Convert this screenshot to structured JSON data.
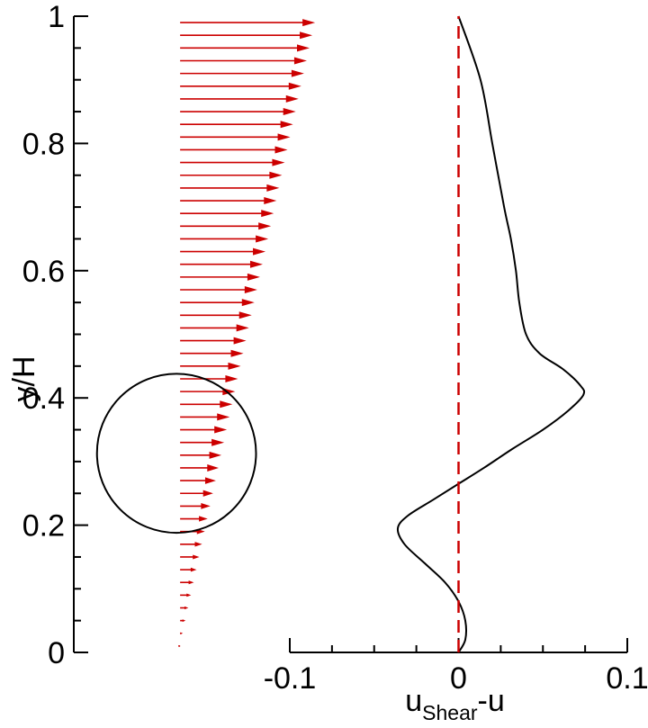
{
  "chart_data": {
    "type": "line",
    "y_axis": {
      "label": "y/H",
      "range": [
        0,
        1
      ],
      "ticks": [
        {
          "value": 0,
          "label": "0"
        },
        {
          "value": 0.2,
          "label": "0.2"
        },
        {
          "value": 0.4,
          "label": "0.4"
        },
        {
          "value": 0.6,
          "label": "0.6"
        },
        {
          "value": 0.8,
          "label": "0.8"
        },
        {
          "value": 1,
          "label": "1"
        }
      ]
    },
    "x_axis": {
      "label_main": "u",
      "label_sub": "Shear",
      "label_tail": "-u",
      "range": [
        -0.1,
        0.1
      ],
      "ticks": [
        {
          "value": -0.1,
          "label": "-0.1"
        },
        {
          "value": 0,
          "label": "0"
        },
        {
          "value": 0.1,
          "label": "0.1"
        }
      ]
    },
    "series": [
      {
        "color": "#000000",
        "style": "solid",
        "points": [
          [
            0.0,
            0.0
          ],
          [
            0.004,
            0.02
          ],
          [
            0.004,
            0.05
          ],
          [
            0.0,
            0.08
          ],
          [
            -0.008,
            0.11
          ],
          [
            -0.02,
            0.14
          ],
          [
            -0.032,
            0.17
          ],
          [
            -0.036,
            0.195
          ],
          [
            -0.03,
            0.215
          ],
          [
            -0.015,
            0.24
          ],
          [
            0.0,
            0.265
          ],
          [
            0.015,
            0.29
          ],
          [
            0.032,
            0.32
          ],
          [
            0.05,
            0.35
          ],
          [
            0.065,
            0.38
          ],
          [
            0.074,
            0.405
          ],
          [
            0.072,
            0.42
          ],
          [
            0.062,
            0.445
          ],
          [
            0.048,
            0.47
          ],
          [
            0.04,
            0.5
          ],
          [
            0.036,
            0.55
          ],
          [
            0.034,
            0.6
          ],
          [
            0.031,
            0.65
          ],
          [
            0.027,
            0.7
          ],
          [
            0.02,
            0.8
          ],
          [
            0.013,
            0.9
          ],
          [
            0.0,
            1.0
          ]
        ]
      },
      {
        "color": "#cc0000",
        "style": "dashed",
        "points": [
          [
            0,
            0
          ],
          [
            0,
            1
          ]
        ]
      }
    ],
    "vector_field": {
      "color": "#cc0000",
      "x_origin_data": -0.165,
      "y_from": 0.01,
      "y_to": 0.99,
      "count": 50,
      "max_length_data": 0.08
    },
    "circle": {
      "center_x_data": -0.165,
      "center_y_data": 0.313,
      "radius_y_data": 0.125
    },
    "grid": false
  }
}
